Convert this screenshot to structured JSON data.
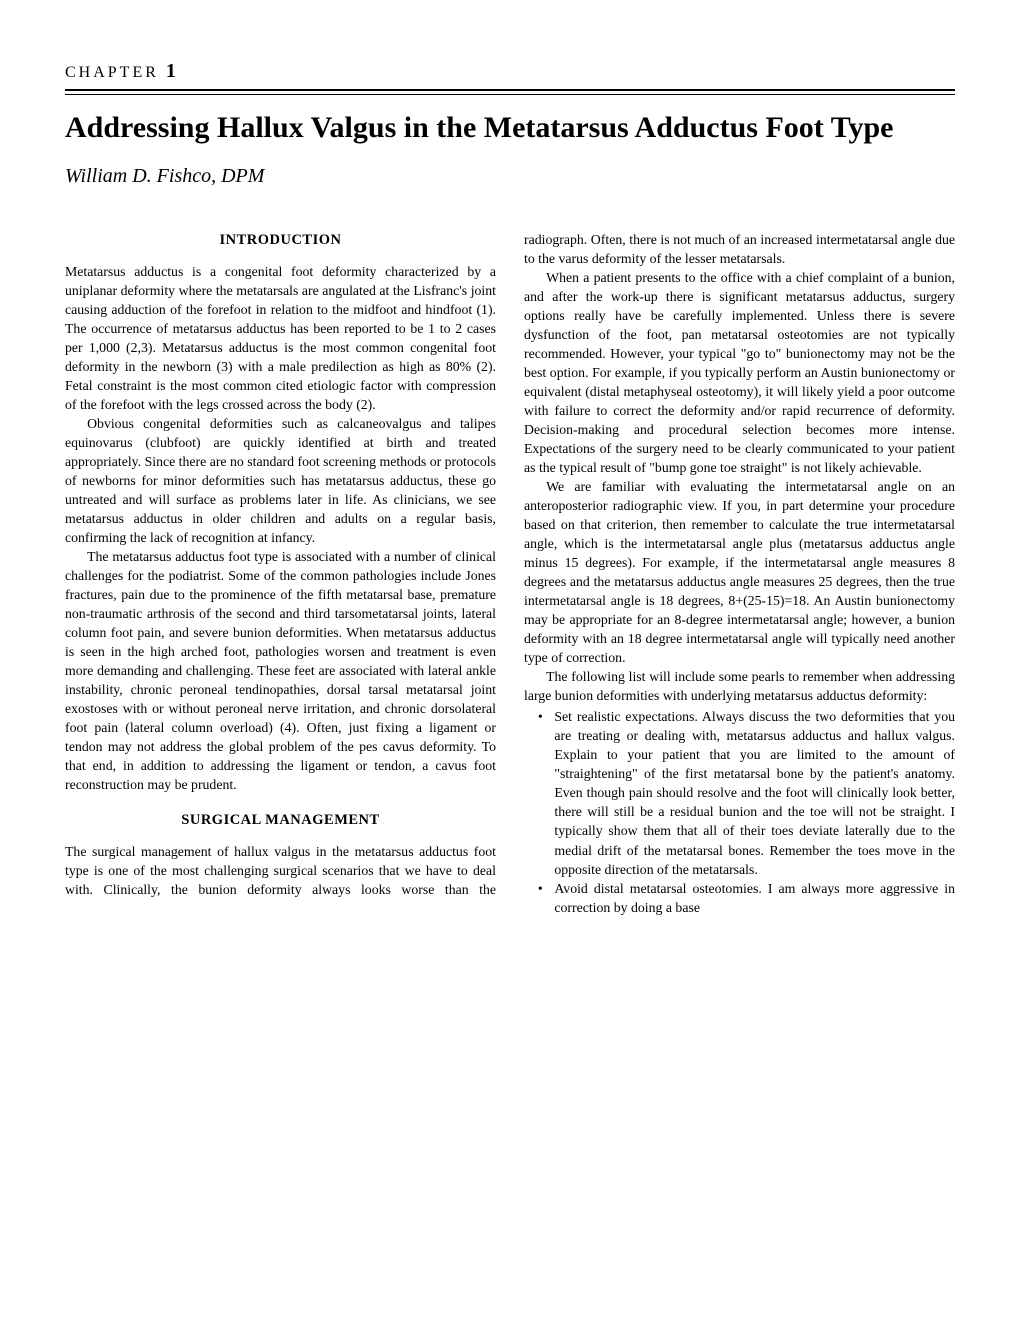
{
  "chapter": {
    "label": "CHAPTER",
    "number": "1"
  },
  "title": "Addressing Hallux Valgus in the Metatarsus Adductus Foot Type",
  "author": "William D. Fishco, DPM",
  "sections": {
    "intro_head": "INTRODUCTION",
    "surgical_head": "SURGICAL MANAGEMENT"
  },
  "intro": {
    "p1": "Metatarsus adductus is a congenital foot deformity characterized by a uniplanar deformity where the metatarsals are angulated at the Lisfranc's joint causing adduction of the forefoot in relation to the midfoot and hindfoot (1). The occurrence of metatarsus adductus has been reported to be 1 to 2 cases per 1,000 (2,3). Metatarsus adductus is the most common congenital foot deformity in the newborn (3) with a male predilection as high as 80% (2). Fetal constraint is the most common cited etiologic factor with compression of the forefoot with the legs crossed across the body (2).",
    "p2": "Obvious congenital deformities such as calcaneovalgus and talipes equinovarus (clubfoot) are quickly identified at birth and treated appropriately. Since there are no standard foot screening methods or protocols of newborns for minor deformities such has metatarsus adductus, these go untreated and will surface as problems later in life. As clinicians, we see metatarsus adductus in older children and adults on a regular basis, confirming the lack of recognition at infancy.",
    "p3": "The metatarsus adductus foot type is associated with a number of clinical challenges for the podiatrist. Some of the common pathologies include Jones fractures, pain due to the prominence of the fifth metatarsal base, premature non-traumatic arthrosis of the second and third tarsometatarsal joints, lateral column foot pain, and severe bunion deformities. When metatarsus adductus is seen in the high arched foot, pathologies worsen and treatment is even more demanding and challenging. These feet are associated with lateral ankle instability, chronic peroneal tendinopathies, dorsal tarsal metatarsal joint exostoses with or without peroneal nerve irritation, and chronic dorsolateral foot pain (lateral column overload) (4). Often, just fixing a ligament or tendon may not address the global problem of the pes cavus deformity. To that end, in addition to addressing the ligament or tendon, a cavus foot reconstruction may be prudent."
  },
  "surgical": {
    "p1": "The surgical management of hallux valgus in the metatarsus adductus foot type is one of the most challenging surgical scenarios that we have to deal with. Clinically, the bunion deformity always looks worse than the radiograph. Often, there is not much of an increased intermetatarsal angle due to the varus deformity of the lesser metatarsals.",
    "p2": "When a patient presents to the office with a chief complaint of a bunion, and after the work-up there is significant metatarsus adductus, surgery options really have be carefully implemented. Unless there is severe dysfunction of the foot, pan metatarsal osteotomies are not typically recommended. However, your typical \"go to\" bunionectomy may not be the best option. For example, if you typically perform an Austin bunionectomy or equivalent (distal metaphyseal osteotomy), it will likely yield a poor outcome with failure to correct the deformity and/or rapid recurrence of deformity. Decision-making and procedural selection becomes more intense. Expectations of the surgery need to be clearly communicated to your patient as the typical result of \"bump gone toe straight\" is not likely achievable.",
    "p3": "We are familiar with evaluating the intermetatarsal angle on an anteroposterior radiographic view. If you, in part determine your procedure based on that criterion, then remember to calculate the true intermetatarsal angle, which is the intermetatarsal angle plus (metatarsus adductus angle minus 15 degrees). For example, if the intermetatarsal angle measures 8 degrees and the metatarsus adductus angle measures 25 degrees, then the true intermetatarsal angle is 18 degrees, 8+(25-15)=18. An Austin bunionectomy may be appropriate for an 8-degree intermetatarsal angle; however, a bunion deformity with an 18 degree intermetatarsal angle will typically need another type of correction.",
    "p4": "The following list will include some pearls to remember when addressing large bunion deformities with underlying metatarsus adductus deformity:",
    "bullets": [
      "Set realistic expectations. Always discuss the two deformities that you are treating or dealing with, metatarsus adductus and hallux valgus. Explain to your patient that you are limited to the amount of \"straightening\" of the first metatarsal bone by the patient's anatomy. Even though pain should resolve and the foot will clinically look better, there will still be a residual bunion and the toe will not be straight. I typically show them that all of their toes deviate laterally due to the medial drift of the metatarsal bones. Remember the toes move in the opposite direction of the metatarsals.",
      "Avoid distal metatarsal osteotomies. I am always more aggressive in correction by doing a base"
    ]
  }
}
